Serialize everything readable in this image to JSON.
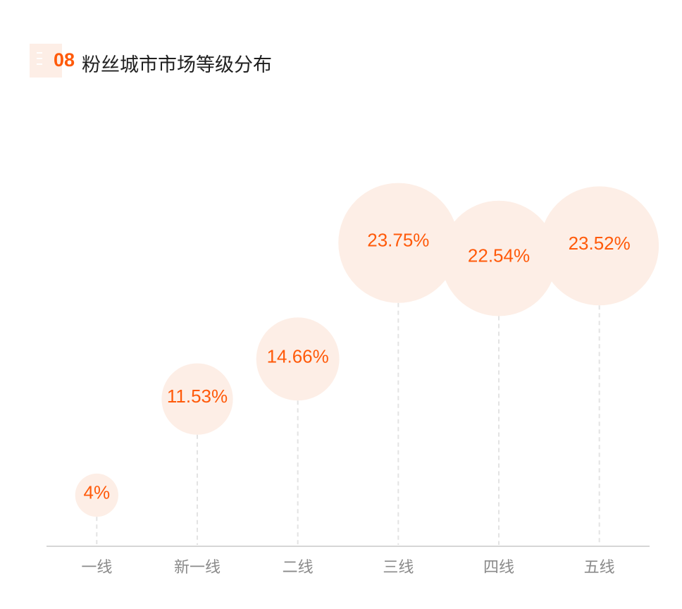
{
  "header": {
    "number": "08",
    "title": "粉丝城市市场等级分布"
  },
  "colors": {
    "accent": "#ff5a0a",
    "bubble_fill": "#fdeee6",
    "axis": "#c8c8c8",
    "leader": "#e3e3e3",
    "tick_text": "#8a8a8a"
  },
  "chart_data": {
    "type": "scatter",
    "encoding": "bubble",
    "categories": [
      "一线",
      "新一线",
      "二线",
      "三线",
      "四线",
      "五线"
    ],
    "values": [
      4,
      11.53,
      14.66,
      23.75,
      22.54,
      23.52
    ],
    "value_labels": [
      "4%",
      "11.53%",
      "14.66%",
      "23.75%",
      "22.54%",
      "23.52%"
    ],
    "unit": "%",
    "ylim": [
      0,
      25
    ],
    "grid": false,
    "legend": false
  }
}
